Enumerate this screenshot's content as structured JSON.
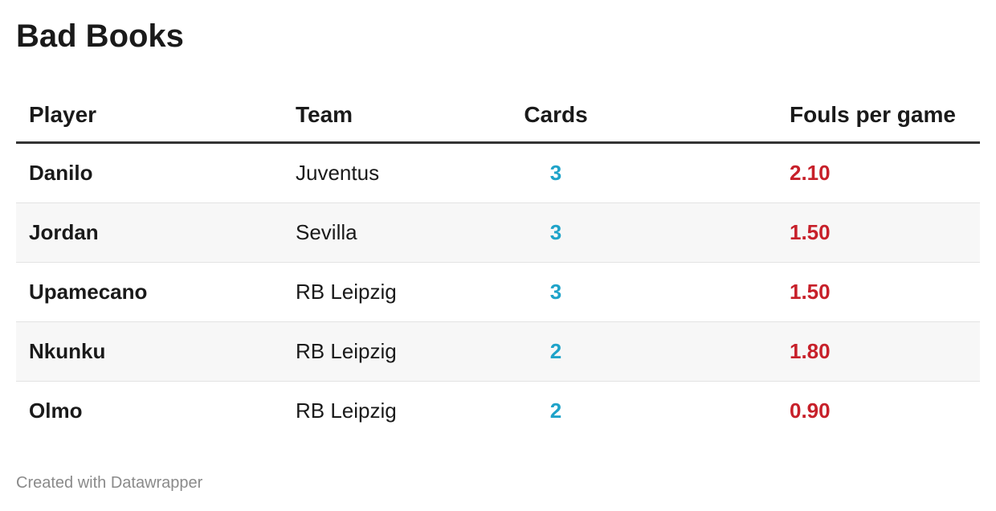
{
  "title": "Bad Books",
  "footer": "Created with Datawrapper",
  "colors": {
    "cards": "#1fa3c9",
    "fouls": "#c7202a"
  },
  "chart_data": {
    "type": "table",
    "columns": [
      "Player",
      "Team",
      "Cards",
      "Fouls per game"
    ],
    "rows": [
      {
        "player": "Danilo",
        "team": "Juventus",
        "cards": "3",
        "fouls": "2.10"
      },
      {
        "player": "Jordan",
        "team": "Sevilla",
        "cards": "3",
        "fouls": "1.50"
      },
      {
        "player": "Upamecano",
        "team": "RB Leipzig",
        "cards": "3",
        "fouls": "1.50"
      },
      {
        "player": "Nkunku",
        "team": "RB Leipzig",
        "cards": "2",
        "fouls": "1.80"
      },
      {
        "player": "Olmo",
        "team": "RB Leipzig",
        "cards": "2",
        "fouls": "0.90"
      }
    ]
  }
}
